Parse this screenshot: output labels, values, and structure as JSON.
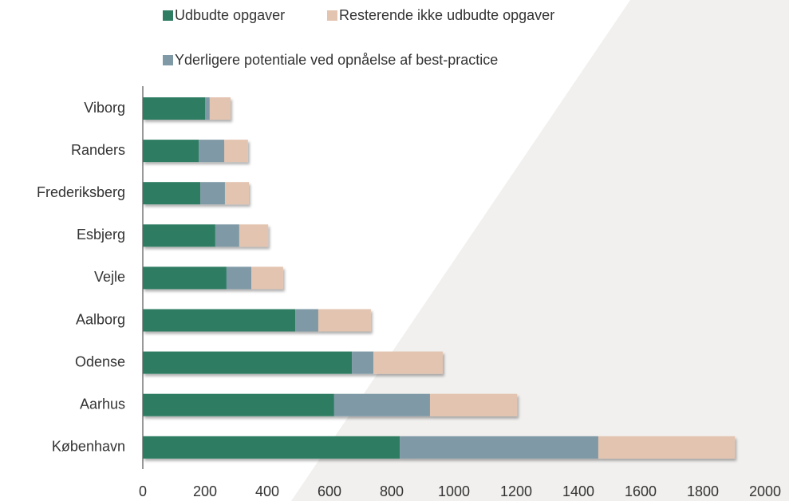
{
  "chart_data": {
    "type": "stacked_barh",
    "categories": [
      "Viborg",
      "Randers",
      "Frederiksberg",
      "Esbjerg",
      "Vejle",
      "Aalborg",
      "Odense",
      "Aarhus",
      "København"
    ],
    "series": [
      {
        "name": "Udbudte opgaver",
        "color": "#2e7d62",
        "values": [
          200,
          180,
          185,
          233,
          269,
          490,
          672,
          615,
          826
        ]
      },
      {
        "name": "Yderligere potentiale ved opnåelse af best-practice",
        "color": "#7f9aa6",
        "values": [
          15,
          82,
          79,
          77,
          80,
          74,
          69,
          308,
          638
        ]
      },
      {
        "name": "Resterende ikke udbudte opgaver",
        "color": "#e3c4b0",
        "values": [
          67,
          76,
          77,
          93,
          102,
          169,
          223,
          280,
          439
        ]
      }
    ],
    "legend_order": [
      0,
      2,
      1
    ],
    "xlim": [
      0,
      2000
    ],
    "xticks": [
      0,
      200,
      400,
      600,
      800,
      1000,
      1200,
      1400,
      1600,
      1800,
      2000
    ]
  }
}
